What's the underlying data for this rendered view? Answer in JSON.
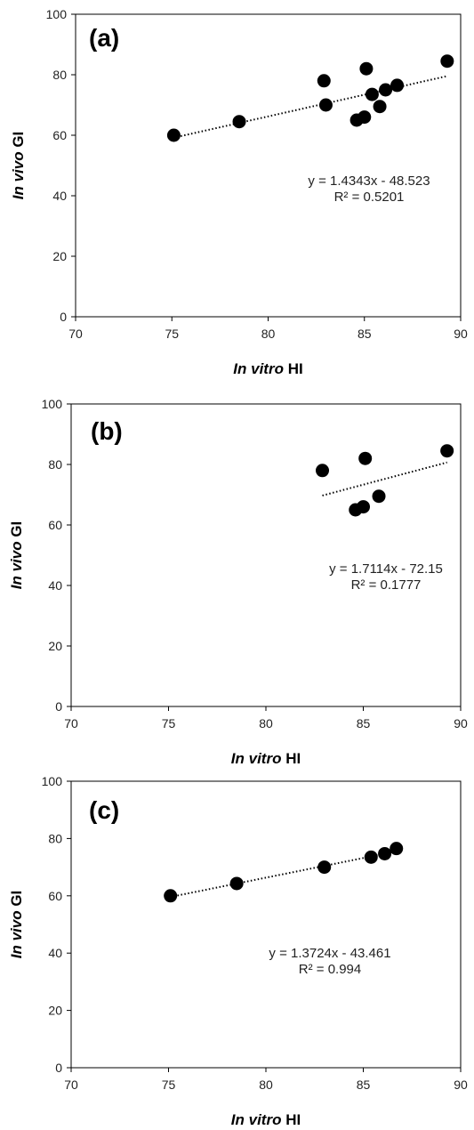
{
  "chart_data": [
    {
      "type": "scatter",
      "panel_label": "(a)",
      "xlabel_italic": "In vitro",
      "xlabel_rest": " HI",
      "ylabel_italic": "In vivo",
      "ylabel_rest": " GI",
      "xlim": [
        70,
        90
      ],
      "ylim": [
        0,
        100
      ],
      "xticks": [
        70,
        75,
        80,
        85,
        90
      ],
      "yticks": [
        0,
        20,
        40,
        60,
        80,
        100
      ],
      "points": [
        {
          "x": 75.1,
          "y": 60.0
        },
        {
          "x": 78.5,
          "y": 64.5
        },
        {
          "x": 82.9,
          "y": 78.0
        },
        {
          "x": 83.0,
          "y": 70.0
        },
        {
          "x": 84.6,
          "y": 65.0
        },
        {
          "x": 85.0,
          "y": 66.0
        },
        {
          "x": 85.1,
          "y": 82.0
        },
        {
          "x": 85.4,
          "y": 73.5
        },
        {
          "x": 85.8,
          "y": 69.5
        },
        {
          "x": 86.1,
          "y": 75.0
        },
        {
          "x": 86.7,
          "y": 76.5
        },
        {
          "x": 89.3,
          "y": 84.5
        }
      ],
      "trendline": {
        "slope": 1.4343,
        "intercept": -48.523,
        "x_range": [
          75.1,
          89.3
        ]
      },
      "equation": "y = 1.4343x - 48.523",
      "r_squared": "R² = 0.5201",
      "grid": false,
      "legend": "none"
    },
    {
      "type": "scatter",
      "panel_label": "(b)",
      "xlabel_italic": "In vitro",
      "xlabel_rest": " HI",
      "ylabel_italic": "In vivo",
      "ylabel_rest": " GI",
      "xlim": [
        70,
        90
      ],
      "ylim": [
        0,
        100
      ],
      "xticks": [
        70,
        75,
        80,
        85,
        90
      ],
      "yticks": [
        0,
        20,
        40,
        60,
        80,
        100
      ],
      "points": [
        {
          "x": 82.9,
          "y": 78.0
        },
        {
          "x": 84.6,
          "y": 65.0
        },
        {
          "x": 85.0,
          "y": 66.0
        },
        {
          "x": 85.1,
          "y": 82.0
        },
        {
          "x": 85.8,
          "y": 69.5
        },
        {
          "x": 89.3,
          "y": 84.5
        }
      ],
      "trendline": {
        "slope": 1.7114,
        "intercept": -72.15,
        "x_range": [
          82.9,
          89.3
        ]
      },
      "equation": "y = 1.7114x - 72.15",
      "r_squared": "R² = 0.1777",
      "grid": false,
      "legend": "none"
    },
    {
      "type": "scatter",
      "panel_label": "(c)",
      "xlabel_italic": "In vitro",
      "xlabel_rest": " HI",
      "ylabel_italic": "In vivo",
      "ylabel_rest": " GI",
      "xlim": [
        70,
        90
      ],
      "ylim": [
        0,
        100
      ],
      "xticks": [
        70,
        75,
        80,
        85,
        90
      ],
      "yticks": [
        0,
        20,
        40,
        60,
        80,
        100
      ],
      "points": [
        {
          "x": 75.1,
          "y": 60.0
        },
        {
          "x": 78.5,
          "y": 64.3
        },
        {
          "x": 83.0,
          "y": 70.0
        },
        {
          "x": 85.4,
          "y": 73.5
        },
        {
          "x": 86.1,
          "y": 74.7
        },
        {
          "x": 86.7,
          "y": 76.5
        }
      ],
      "trendline": {
        "slope": 1.3724,
        "intercept": -43.461,
        "x_range": [
          75.1,
          86.7
        ]
      },
      "equation": "y = 1.3724x - 43.461",
      "r_squared": "R² = 0.994",
      "grid": false,
      "legend": "none"
    }
  ]
}
